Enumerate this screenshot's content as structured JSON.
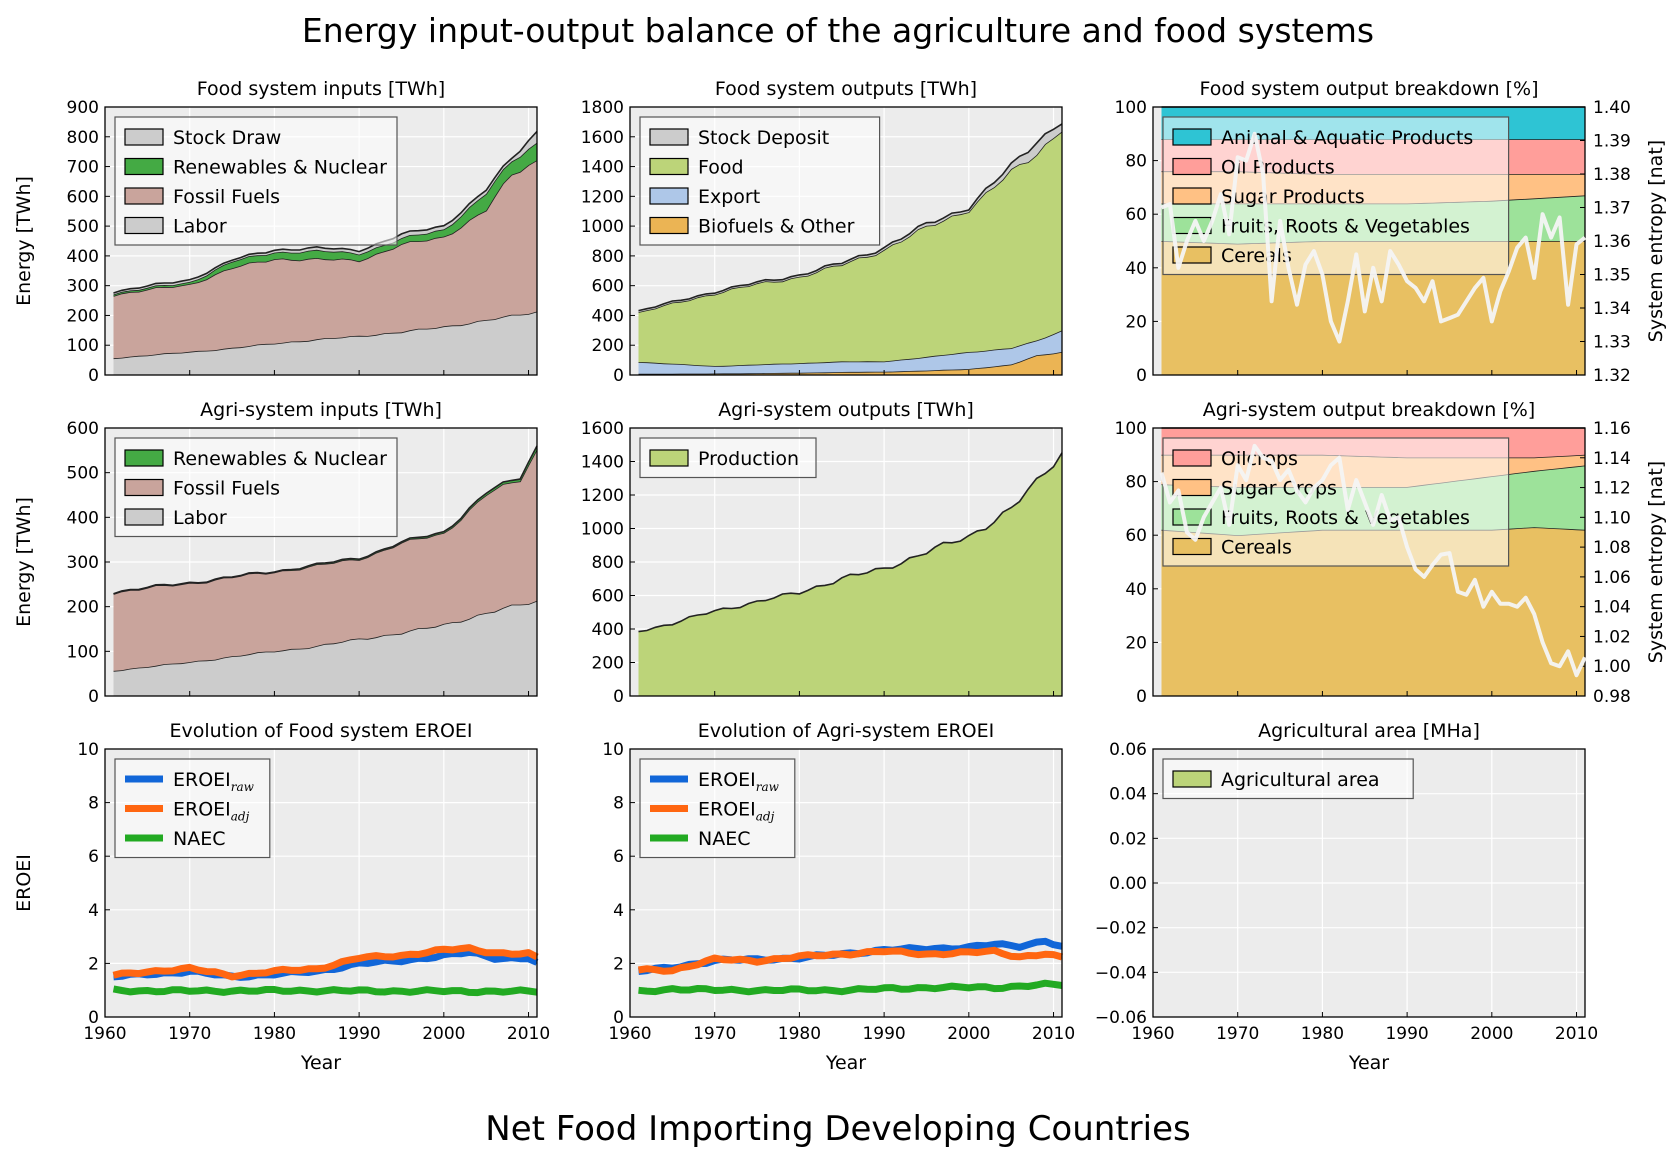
{
  "title": "Energy input-output balance of the agriculture and food systems",
  "subtitle": "Net Food Importing Developing Countries",
  "x_axis": {
    "label": "Year",
    "range": [
      1960,
      2011
    ],
    "ticks": [
      "1960",
      "1970",
      "1980",
      "1990",
      "2000",
      "2010"
    ]
  },
  "colors": {
    "stock": "#cccccc",
    "renewables": "#44aa44",
    "fossil": "#c9a49c",
    "labor": "#cccccc",
    "food": "#bcd479",
    "export": "#aec7e8",
    "biofuels": "#ebb454",
    "animal": "#2ec4d4",
    "oil": "#ff9e9a",
    "sugar": "#ffc184",
    "fruits": "#9de29a",
    "cereals": "#e8c062",
    "eroei_raw": "#1166d8",
    "eroei_adj": "#ff6611",
    "naec": "#22aa22",
    "plot_bg": "#ececec",
    "grid": "#ffffff"
  },
  "chart_data": [
    {
      "id": "food_inputs",
      "type": "area",
      "title": "Food system inputs [TWh]",
      "ylabel": "Energy [TWh]",
      "xlabel": "",
      "ylim": [
        0,
        900
      ],
      "yticks": [
        "0",
        "100",
        "200",
        "300",
        "400",
        "500",
        "600",
        "700",
        "800",
        "900"
      ],
      "x": [
        1961,
        1970,
        1975,
        1980,
        1985,
        1990,
        1995,
        2000,
        2005,
        2008,
        2011
      ],
      "series": [
        {
          "name": "Labor",
          "color_key": "labor",
          "values": [
            57,
            78,
            90,
            107,
            119,
            131,
            145,
            162,
            184,
            198,
            213
          ]
        },
        {
          "name": "Fossil Fuels",
          "color_key": "fossil",
          "values": [
            213,
            227,
            268,
            285,
            268,
            256,
            291,
            303,
            369,
            475,
            510
          ]
        },
        {
          "name": "Renewables & Nuclear",
          "color_key": "renewables",
          "values": [
            5,
            7,
            22,
            22,
            28,
            23,
            20,
            25,
            55,
            45,
            60
          ]
        },
        {
          "name": "Stock Draw",
          "color_key": "stock",
          "values": [
            5,
            8,
            5,
            8,
            10,
            10,
            14,
            12,
            12,
            10,
            37
          ]
        }
      ],
      "legend_order": [
        "Stock Draw",
        "Renewables & Nuclear",
        "Fossil Fuels",
        "Labor"
      ]
    },
    {
      "id": "food_outputs",
      "type": "area",
      "title": "Food system outputs [TWh]",
      "ylabel": "",
      "xlabel": "",
      "ylim": [
        0,
        1800
      ],
      "yticks": [
        "0",
        "200",
        "400",
        "600",
        "800",
        "1000",
        "1200",
        "1400",
        "1600",
        "1800"
      ],
      "x": [
        1961,
        1970,
        1975,
        1980,
        1985,
        1990,
        1995,
        2000,
        2005,
        2008,
        2011
      ],
      "series": [
        {
          "name": "Biofuels & Other",
          "color_key": "biofuels",
          "values": [
            8,
            10,
            12,
            15,
            20,
            22,
            30,
            40,
            70,
            130,
            155
          ]
        },
        {
          "name": "Export",
          "color_key": "export",
          "values": [
            80,
            50,
            58,
            65,
            70,
            70,
            90,
            115,
            110,
            100,
            145
          ]
        },
        {
          "name": "Food",
          "color_key": "food",
          "values": [
            332,
            490,
            540,
            580,
            650,
            750,
            870,
            960,
            1180,
            1260,
            1360
          ]
        },
        {
          "name": "Stock Deposit",
          "color_key": "stock",
          "values": [
            10,
            10,
            10,
            12,
            12,
            15,
            20,
            15,
            40,
            80,
            50
          ]
        }
      ],
      "legend_order": [
        "Stock Deposit",
        "Food",
        "Export",
        "Biofuels & Other"
      ]
    },
    {
      "id": "food_breakdown",
      "type": "area",
      "title": "Food system output breakdown [%]",
      "ylabel": "",
      "y2label": "System entropy [nat]",
      "xlabel": "",
      "ylim": [
        0,
        100
      ],
      "yticks": [
        "0",
        "20",
        "40",
        "60",
        "80",
        "100"
      ],
      "y2lim": [
        1.32,
        1.4
      ],
      "y2ticks": [
        "1.32",
        "1.33",
        "1.34",
        "1.35",
        "1.36",
        "1.37",
        "1.38",
        "1.39",
        "1.40"
      ],
      "x": [
        1961,
        1970,
        1980,
        1990,
        2000,
        2011
      ],
      "series": [
        {
          "name": "Cereals",
          "color_key": "cereals",
          "values": [
            50,
            49,
            50,
            50,
            50,
            50
          ]
        },
        {
          "name": "Fruits, Roots & Vegetables",
          "color_key": "fruits",
          "values": [
            14,
            15,
            14,
            14,
            15,
            17
          ]
        },
        {
          "name": "Sugar Products",
          "color_key": "sugar",
          "values": [
            12,
            12,
            11,
            11,
            10,
            8
          ]
        },
        {
          "name": "Oil Products",
          "color_key": "oil",
          "values": [
            12,
            12,
            13,
            13,
            13,
            13
          ]
        },
        {
          "name": "Animal & Aquatic Products",
          "color_key": "animal",
          "values": [
            12,
            12,
            12,
            12,
            12,
            12
          ]
        }
      ],
      "legend_order": [
        "Animal & Aquatic Products",
        "Oil Products",
        "Sugar Products",
        "Fruits, Roots & Vegetables",
        "Cereals"
      ],
      "entropy": {
        "x": [
          1961,
          1962,
          1963,
          1964,
          1965,
          1966,
          1967,
          1968,
          1969,
          1970,
          1971,
          1972,
          1973,
          1974,
          1975,
          1976,
          1977,
          1978,
          1979,
          1980,
          1981,
          1982,
          1983,
          1984,
          1985,
          1986,
          1987,
          1988,
          1989,
          1990,
          1991,
          1992,
          1993,
          1994,
          1995,
          1996,
          1997,
          1998,
          1999,
          2000,
          2001,
          2002,
          2003,
          2004,
          2005,
          2006,
          2007,
          2008,
          2009,
          2010,
          2011
        ],
        "values": [
          1.37,
          1.371,
          1.352,
          1.36,
          1.366,
          1.36,
          1.366,
          1.374,
          1.362,
          1.385,
          1.384,
          1.392,
          1.38,
          1.342,
          1.366,
          1.352,
          1.341,
          1.353,
          1.357,
          1.35,
          1.336,
          1.33,
          1.342,
          1.356,
          1.339,
          1.352,
          1.342,
          1.357,
          1.353,
          1.348,
          1.346,
          1.342,
          1.348,
          1.336,
          1.337,
          1.338,
          1.342,
          1.346,
          1.349,
          1.336,
          1.345,
          1.351,
          1.358,
          1.361,
          1.349,
          1.368,
          1.361,
          1.367,
          1.341,
          1.359,
          1.361
        ]
      }
    },
    {
      "id": "agri_inputs",
      "type": "area",
      "title": "Agri-system inputs [TWh]",
      "ylabel": "Energy [TWh]",
      "xlabel": "",
      "ylim": [
        0,
        600
      ],
      "yticks": [
        "0",
        "100",
        "200",
        "300",
        "400",
        "500",
        "600"
      ],
      "x": [
        1961,
        1970,
        1975,
        1980,
        1985,
        1990,
        1995,
        2000,
        2005,
        2009,
        2011
      ],
      "series": [
        {
          "name": "Labor",
          "color_key": "labor",
          "values": [
            57,
            76,
            88,
            101,
            111,
            128,
            141,
            160,
            185,
            205,
            213
          ]
        },
        {
          "name": "Fossil Fuels",
          "color_key": "fossil",
          "values": [
            175,
            177,
            177,
            178,
            180,
            180,
            200,
            205,
            265,
            280,
            340
          ]
        },
        {
          "name": "Renewables & Nuclear",
          "color_key": "renewables",
          "values": [
            1,
            1,
            1,
            1,
            2,
            2,
            2,
            3,
            4,
            5,
            8
          ]
        }
      ],
      "legend_order": [
        "Renewables & Nuclear",
        "Fossil Fuels",
        "Labor"
      ]
    },
    {
      "id": "agri_outputs",
      "type": "area",
      "title": "Agri-system outputs [TWh]",
      "ylabel": "",
      "xlabel": "",
      "ylim": [
        0,
        1600
      ],
      "yticks": [
        "0",
        "200",
        "400",
        "600",
        "800",
        "1000",
        "1200",
        "1400",
        "1600"
      ],
      "x": [
        1961,
        1965,
        1970,
        1975,
        1980,
        1985,
        1990,
        1995,
        2000,
        2005,
        2008,
        2011
      ],
      "series": [
        {
          "name": "Production",
          "color_key": "food",
          "values": [
            390,
            430,
            510,
            560,
            620,
            700,
            760,
            860,
            950,
            1120,
            1270,
            1450
          ]
        }
      ],
      "legend_order": [
        "Production"
      ]
    },
    {
      "id": "agri_breakdown",
      "type": "area",
      "title": "Agri-system output breakdown [%]",
      "ylabel": "",
      "y2label": "System entropy [nat]",
      "xlabel": "",
      "ylim": [
        0,
        100
      ],
      "yticks": [
        "0",
        "20",
        "40",
        "60",
        "80",
        "100"
      ],
      "y2lim": [
        0.98,
        1.16
      ],
      "y2ticks": [
        "0.98",
        "1.00",
        "1.02",
        "1.04",
        "1.06",
        "1.08",
        "1.10",
        "1.12",
        "1.14",
        "1.16"
      ],
      "x": [
        1961,
        1970,
        1980,
        1990,
        2000,
        2005,
        2011
      ],
      "series": [
        {
          "name": "Cereals",
          "color_key": "cereals",
          "values": [
            62,
            60,
            62,
            62,
            62,
            63,
            62
          ]
        },
        {
          "name": "Fruits, Roots & Vegetables",
          "color_key": "fruits",
          "values": [
            17,
            18,
            16,
            16,
            20,
            21,
            24
          ]
        },
        {
          "name": "Sugar Crops",
          "color_key": "sugar",
          "values": [
            11,
            12,
            12,
            11,
            7,
            5,
            4
          ]
        },
        {
          "name": "Oilcrops",
          "color_key": "oil",
          "values": [
            10,
            10,
            10,
            11,
            11,
            11,
            10
          ]
        }
      ],
      "legend_order": [
        "Oilcrops",
        "Sugar Crops",
        "Fruits, Roots & Vegetables",
        "Cereals"
      ],
      "entropy": {
        "x": [
          1961,
          1962,
          1963,
          1964,
          1965,
          1966,
          1967,
          1968,
          1969,
          1970,
          1971,
          1972,
          1973,
          1974,
          1975,
          1976,
          1977,
          1978,
          1979,
          1980,
          1981,
          1982,
          1983,
          1984,
          1985,
          1986,
          1987,
          1988,
          1989,
          1990,
          1991,
          1992,
          1993,
          1994,
          1995,
          1996,
          1997,
          1998,
          1999,
          2000,
          2001,
          2002,
          2003,
          2004,
          2005,
          2006,
          2007,
          2008,
          2009,
          2010,
          2011
        ],
        "values": [
          1.13,
          1.11,
          1.118,
          1.09,
          1.085,
          1.1,
          1.11,
          1.12,
          1.095,
          1.135,
          1.125,
          1.148,
          1.14,
          1.138,
          1.125,
          1.132,
          1.118,
          1.11,
          1.12,
          1.125,
          1.135,
          1.14,
          1.105,
          1.125,
          1.11,
          1.095,
          1.115,
          1.098,
          1.1,
          1.08,
          1.065,
          1.06,
          1.068,
          1.075,
          1.076,
          1.05,
          1.048,
          1.058,
          1.04,
          1.05,
          1.042,
          1.042,
          1.04,
          1.046,
          1.035,
          1.016,
          1.002,
          1.0,
          1.01,
          0.994,
          1.006
        ]
      }
    },
    {
      "id": "food_eroei",
      "type": "line",
      "title": "Evolution of Food system EROEI",
      "ylabel": "EROEI",
      "xlabel": "Year",
      "ylim": [
        0,
        10
      ],
      "yticks": [
        "0",
        "2",
        "4",
        "6",
        "8",
        "10"
      ],
      "x": [
        1961,
        1965,
        1970,
        1975,
        1980,
        1985,
        1990,
        1995,
        2000,
        2003,
        2006,
        2010,
        2011
      ],
      "series": [
        {
          "name": "EROEI",
          "sub": "raw",
          "color_key": "eroei_raw",
          "values": [
            1.5,
            1.6,
            1.7,
            1.5,
            1.6,
            1.7,
            2.0,
            2.1,
            2.3,
            2.4,
            2.2,
            2.2,
            2.0
          ]
        },
        {
          "name": "EROEI",
          "sub": "adj",
          "color_key": "eroei_adj",
          "values": [
            1.55,
            1.7,
            1.8,
            1.55,
            1.7,
            1.8,
            2.2,
            2.3,
            2.5,
            2.55,
            2.4,
            2.35,
            2.2
          ]
        },
        {
          "name": "NAEC",
          "sub": "",
          "color_key": "naec",
          "values": [
            1.0,
            0.98,
            0.97,
            0.98,
            0.98,
            0.99,
            0.97,
            0.97,
            0.96,
            0.96,
            0.96,
            0.95,
            0.95
          ]
        }
      ]
    },
    {
      "id": "agri_eroei",
      "type": "line",
      "title": "Evolution of Agri-system EROEI",
      "ylabel": "",
      "xlabel": "Year",
      "ylim": [
        0,
        10
      ],
      "yticks": [
        "0",
        "2",
        "4",
        "6",
        "8",
        "10"
      ],
      "x": [
        1961,
        1965,
        1970,
        1975,
        1980,
        1985,
        1990,
        1995,
        2000,
        2003,
        2006,
        2009,
        2011
      ],
      "series": [
        {
          "name": "EROEI",
          "sub": "raw",
          "color_key": "eroei_raw",
          "values": [
            1.7,
            1.85,
            2.1,
            2.15,
            2.2,
            2.35,
            2.5,
            2.55,
            2.6,
            2.7,
            2.65,
            2.85,
            2.6
          ]
        },
        {
          "name": "EROEI",
          "sub": "adj",
          "color_key": "eroei_adj",
          "values": [
            1.75,
            1.75,
            2.15,
            2.1,
            2.25,
            2.35,
            2.45,
            2.35,
            2.4,
            2.45,
            2.25,
            2.35,
            2.2
          ]
        },
        {
          "name": "NAEC",
          "sub": "",
          "color_key": "naec",
          "values": [
            0.95,
            1.05,
            1.0,
            1.0,
            1.0,
            1.0,
            1.05,
            1.1,
            1.1,
            1.1,
            1.15,
            1.2,
            1.2
          ]
        }
      ]
    },
    {
      "id": "agri_area",
      "type": "area",
      "title": "Agricultural area [MHa]",
      "ylabel": "",
      "xlabel": "Year",
      "ylim": [
        -0.06,
        0.06
      ],
      "yticks": [
        "−0.06",
        "−0.04",
        "−0.02",
        "0.00",
        "0.02",
        "0.04",
        "0.06"
      ],
      "x": [],
      "series": [
        {
          "name": "Agricultural area",
          "color_key": "food",
          "values": []
        }
      ],
      "legend_order": [
        "Agricultural area"
      ]
    }
  ]
}
